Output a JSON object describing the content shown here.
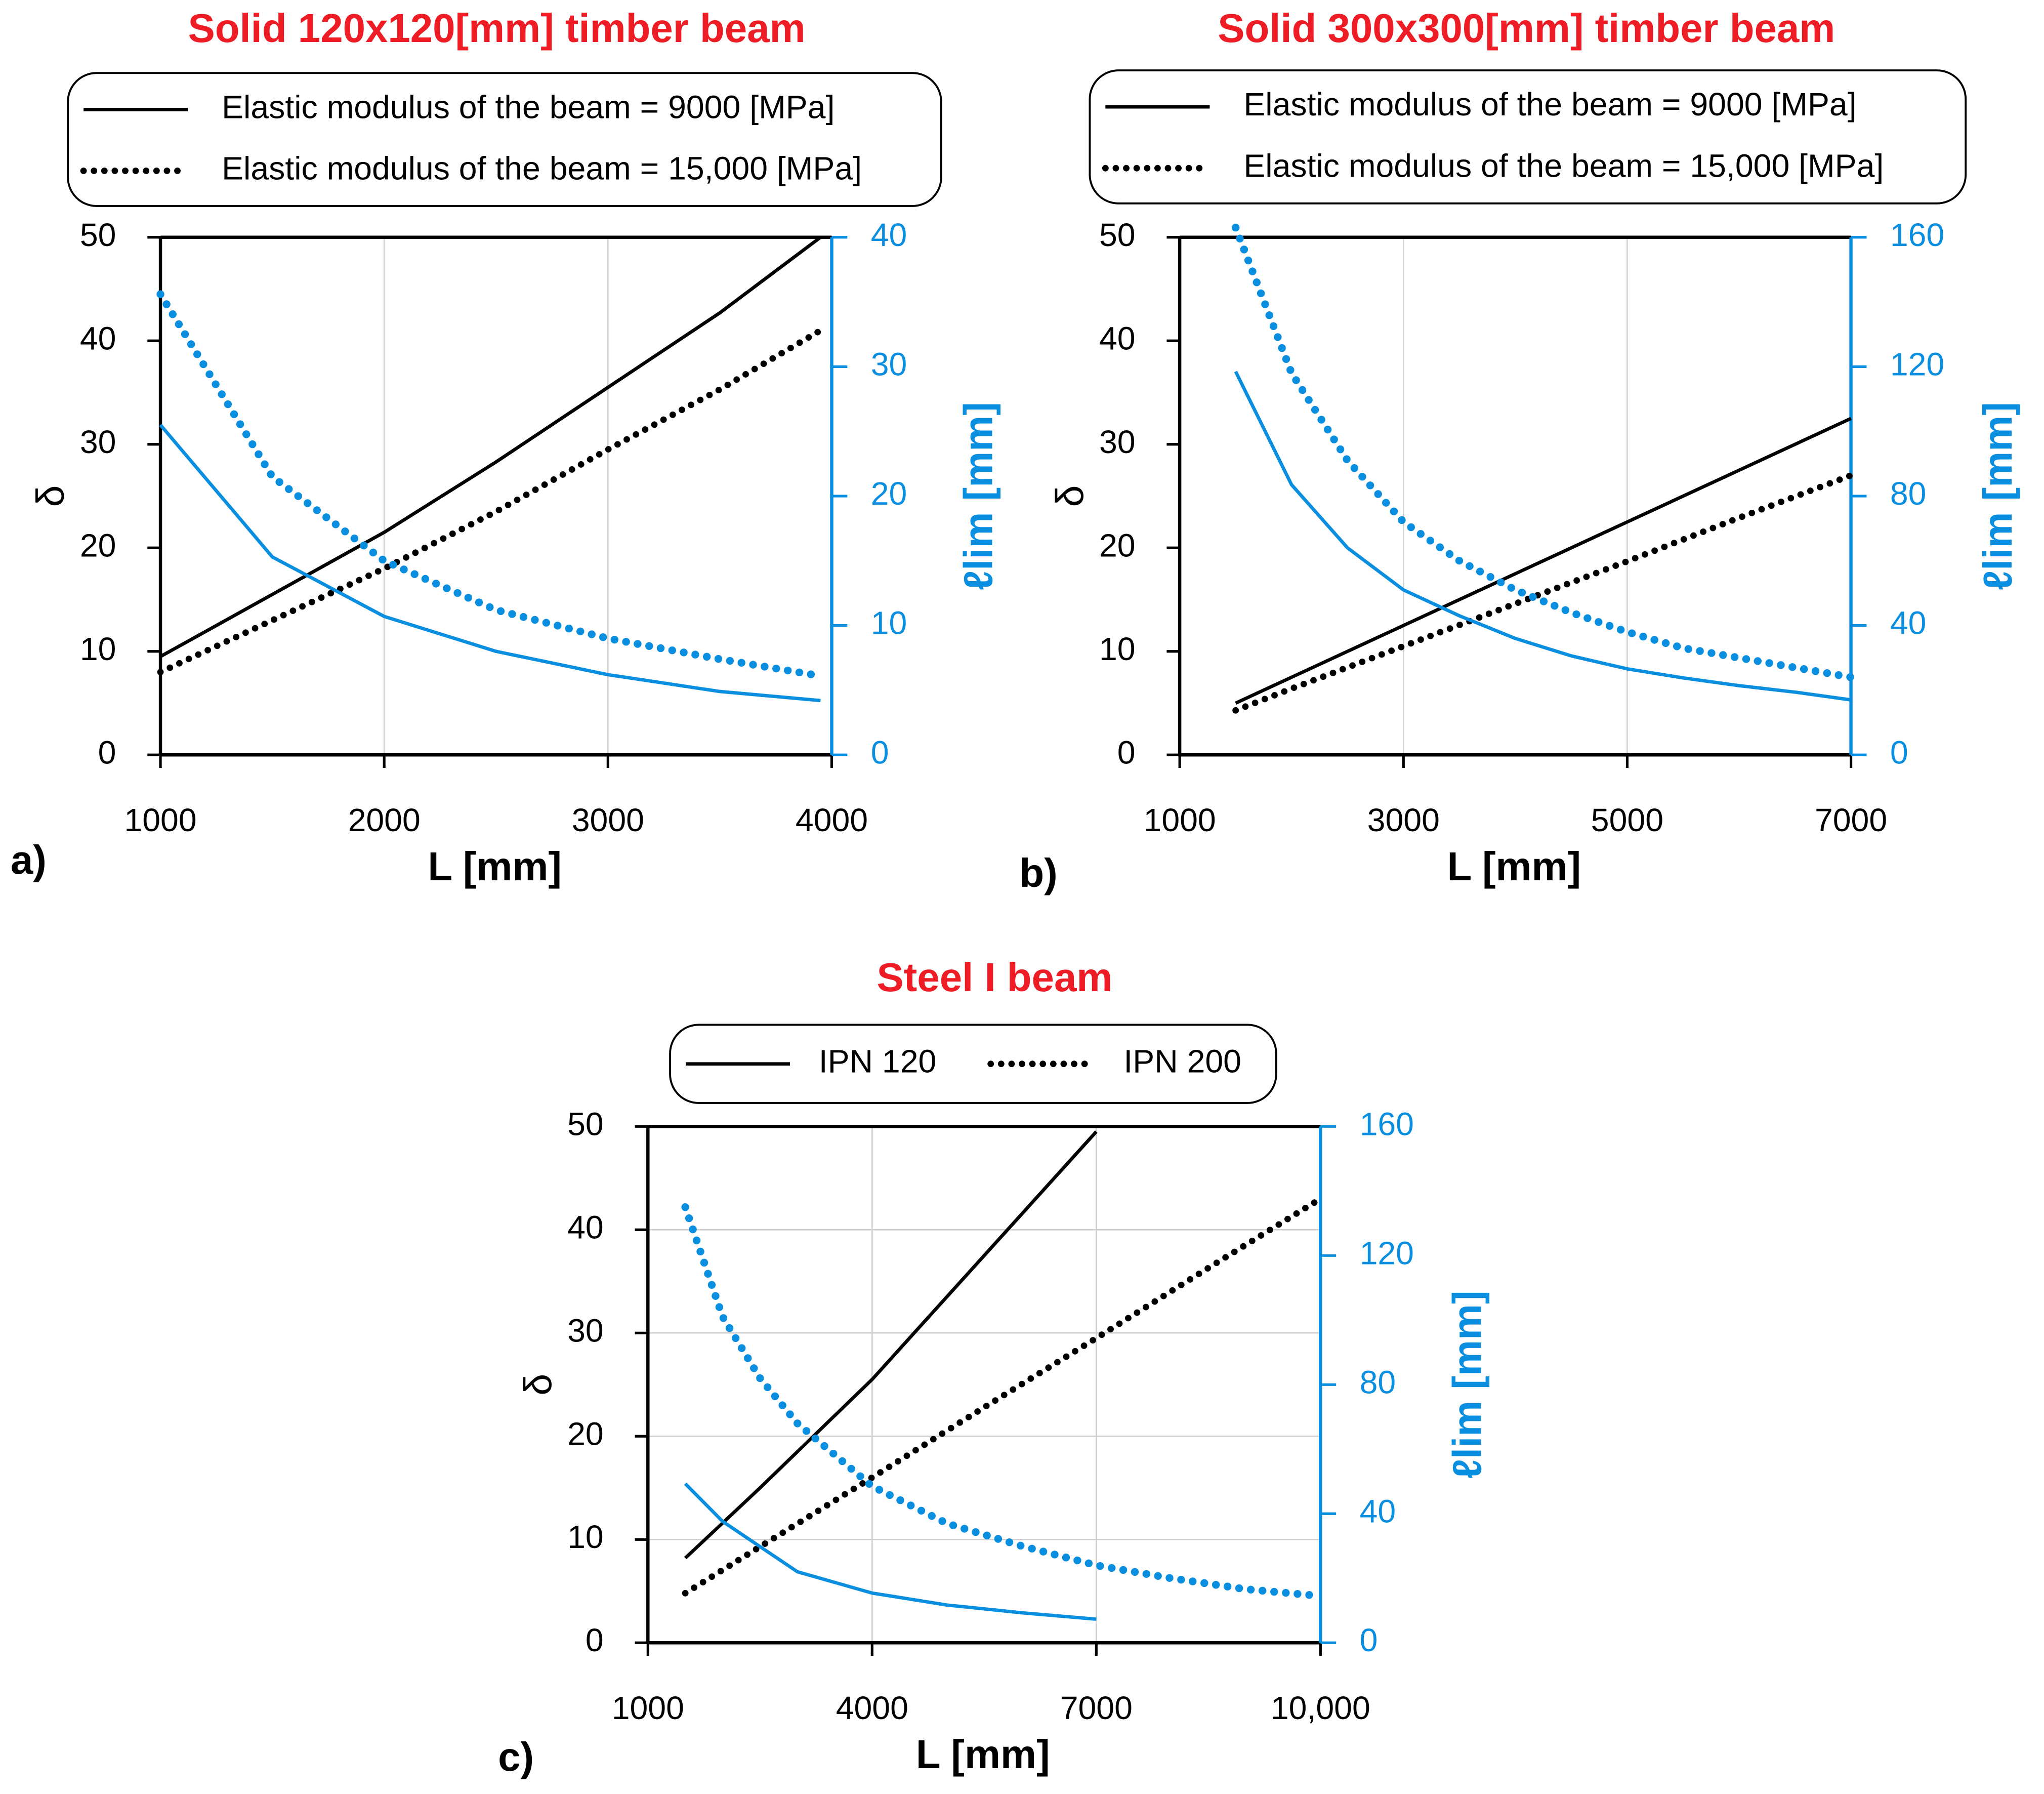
{
  "chart_data": [
    {
      "type": "line",
      "title": "Solid 120x120[mm] timber beam",
      "panel_label": "a)",
      "xlabel": "L [mm]",
      "ylabel": "δ",
      "y2label": "ℓlim [mm]",
      "xlim": [
        1000,
        4000
      ],
      "xticks": [
        1000,
        2000,
        3000,
        4000
      ],
      "ylim": [
        0,
        50
      ],
      "yticks": [
        0,
        10,
        20,
        30,
        40,
        50
      ],
      "y2lim": [
        0,
        40
      ],
      "y2ticks": [
        0,
        10,
        20,
        30,
        40
      ],
      "grid": "x",
      "legend": "column",
      "y2color": "#0a8fe0",
      "series": [
        {
          "name": "Elastic modulus of the beam = 9000 [MPa]",
          "color": "#000000",
          "dash": "solid",
          "axis": "y",
          "x": [
            1000,
            1500,
            2000,
            2500,
            3000,
            3500,
            3950
          ],
          "values": [
            9.5,
            15.5,
            21.5,
            28.3,
            35.5,
            42.7,
            50
          ]
        },
        {
          "name": "Elastic modulus of the beam = 15,000 [MPa]",
          "color": "#000000",
          "dash": "dotted",
          "axis": "y",
          "x": [
            1000,
            1500,
            2000,
            2500,
            3000,
            3500,
            3950
          ],
          "values": [
            8,
            13,
            18,
            23.5,
            29.5,
            35.3,
            41
          ]
        },
        {
          "color": "#0a8fe0",
          "dash": "solid",
          "axis": "y2",
          "x": [
            1000,
            1500,
            2000,
            2500,
            3000,
            3500,
            3950
          ],
          "values": [
            25.5,
            15.3,
            10.7,
            8,
            6.2,
            4.9,
            4.2
          ]
        },
        {
          "color": "#0a8fe0",
          "dash": "dotted",
          "axis": "y2",
          "x": [
            1000,
            1500,
            2000,
            2500,
            3000,
            3500,
            3950
          ],
          "values": [
            35.6,
            21.5,
            15,
            11.2,
            9,
            7.4,
            6.1
          ]
        }
      ]
    },
    {
      "type": "line",
      "title": "Solid 300x300[mm] timber beam",
      "panel_label": "b)",
      "xlabel": "L [mm]",
      "ylabel": "δ",
      "y2label": "ℓlim [mm]",
      "xlim": [
        1000,
        7000
      ],
      "xticks": [
        1000,
        3000,
        5000,
        7000
      ],
      "ylim": [
        0,
        50
      ],
      "yticks": [
        0,
        10,
        20,
        30,
        40,
        50
      ],
      "y2lim": [
        0,
        160
      ],
      "y2ticks": [
        0,
        40,
        80,
        120,
        160
      ],
      "grid": "x",
      "legend": "column",
      "y2color": "#0a8fe0",
      "series": [
        {
          "name": "Elastic modulus of the beam = 9000 [MPa]",
          "color": "#000000",
          "dash": "solid",
          "axis": "y",
          "x": [
            1500,
            2000,
            3000,
            4000,
            5000,
            6000,
            7000
          ],
          "values": [
            5,
            7.5,
            12.5,
            17.5,
            22.5,
            27.5,
            32.5
          ]
        },
        {
          "name": "Elastic modulus of the beam = 15,000 [MPa]",
          "color": "#000000",
          "dash": "dotted",
          "axis": "y",
          "x": [
            1500,
            2000,
            3000,
            4000,
            5000,
            6000,
            7000
          ],
          "values": [
            4.3,
            6.4,
            10.5,
            14.6,
            18.7,
            22.9,
            27
          ]
        },
        {
          "color": "#0a8fe0",
          "dash": "solid",
          "axis": "y2",
          "x": [
            1500,
            2000,
            2500,
            3000,
            3500,
            4000,
            4500,
            5000,
            5500,
            6000,
            6500,
            7000
          ],
          "values": [
            118.5,
            83.5,
            64,
            51,
            43,
            36,
            30.6,
            26.6,
            23.8,
            21.4,
            19.4,
            17
          ]
        },
        {
          "color": "#0a8fe0",
          "dash": "dotted",
          "axis": "y2",
          "x": [
            1500,
            2000,
            2500,
            3000,
            3500,
            4000,
            4500,
            5000,
            5500,
            6000,
            6500,
            7000
          ],
          "values": [
            163,
            118,
            91,
            72,
            60,
            51,
            44,
            38,
            33,
            30,
            27,
            24
          ]
        }
      ]
    },
    {
      "type": "line",
      "title": "Steel I beam",
      "panel_label": "c)",
      "xlabel": "L [mm]",
      "ylabel": "δ",
      "y2label": "ℓlim [mm]",
      "xlim": [
        1000,
        10000
      ],
      "xticks": [
        1000,
        4000,
        7000,
        {
          "value": 10000,
          "label": "10,000"
        }
      ],
      "ylim": [
        0,
        50
      ],
      "yticks": [
        0,
        10,
        20,
        30,
        40,
        50
      ],
      "y2lim": [
        0,
        160
      ],
      "y2ticks": [
        0,
        40,
        80,
        120,
        160
      ],
      "grid": "both",
      "legend": "row",
      "y2color": "#0a8fe0",
      "series": [
        {
          "name": "IPN 120",
          "color": "#000000",
          "dash": "solid",
          "axis": "y",
          "x": [
            1500,
            2500,
            4000,
            5500,
            7000
          ],
          "values": [
            8.2,
            15,
            25.5,
            37.5,
            49.5
          ]
        },
        {
          "name": "IPN 200",
          "color": "#000000",
          "dash": "dotted",
          "axis": "y",
          "x": [
            1500,
            2500,
            4000,
            5500,
            7000,
            8500,
            10000
          ],
          "values": [
            4.8,
            9.3,
            16,
            22.8,
            29.5,
            36.3,
            43
          ]
        },
        {
          "color": "#0a8fe0",
          "dash": "solid",
          "axis": "y2",
          "x": [
            1500,
            2000,
            3000,
            4000,
            5000,
            6000,
            7000
          ],
          "values": [
            49.3,
            37.6,
            22,
            15.4,
            11.7,
            9.3,
            7.3
          ]
        },
        {
          "color": "#0a8fe0",
          "dash": "dotted",
          "axis": "y2",
          "x": [
            1500,
            2000,
            2500,
            3000,
            4000,
            5000,
            6000,
            7000,
            8000,
            9000,
            10000
          ],
          "values": [
            135,
            101,
            82,
            68,
            48.5,
            37,
            30,
            24,
            20,
            16.6,
            14.5
          ]
        }
      ]
    }
  ]
}
